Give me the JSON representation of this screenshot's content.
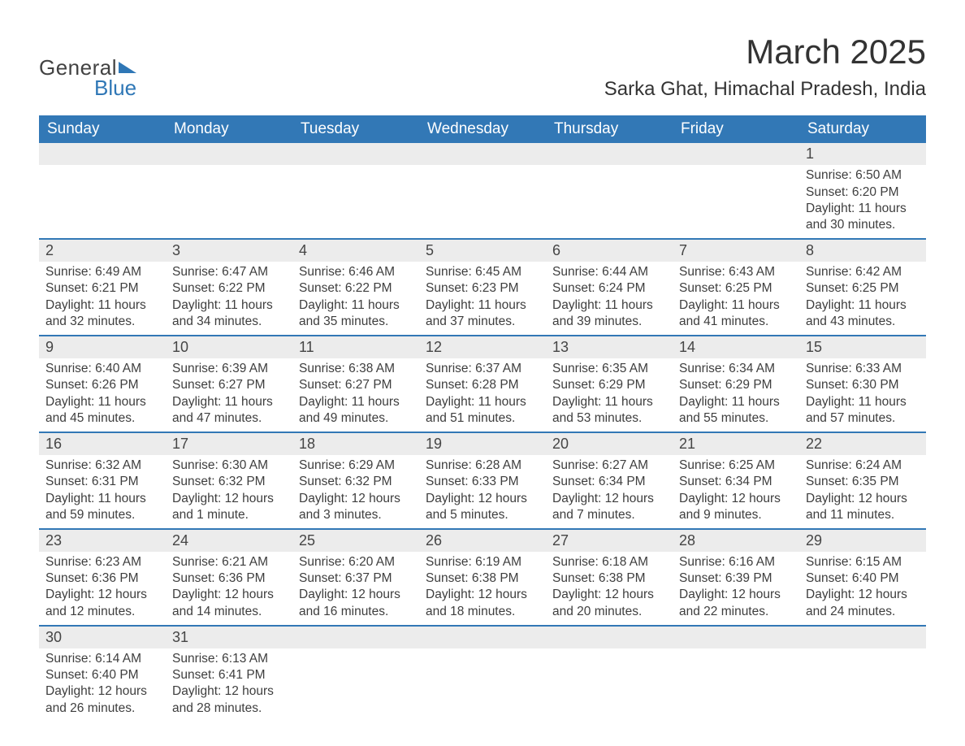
{
  "brand": {
    "part1": "General",
    "part2": "Blue"
  },
  "title": {
    "month_year": "March 2025",
    "location": "Sarka Ghat, Himachal Pradesh, India"
  },
  "colors": {
    "header_bg": "#3278b6",
    "header_text": "#ffffff",
    "daynum_bg": "#ececec",
    "body_bg": "#ffffff",
    "text": "#3a3a3a",
    "row_border": "#3278b6"
  },
  "typography": {
    "month_year_fontsize": 42,
    "location_fontsize": 24,
    "header_fontsize": 19,
    "daynum_fontsize": 18,
    "body_fontsize": 15.5
  },
  "day_headers": [
    "Sunday",
    "Monday",
    "Tuesday",
    "Wednesday",
    "Thursday",
    "Friday",
    "Saturday"
  ],
  "weeks": [
    [
      null,
      null,
      null,
      null,
      null,
      null,
      {
        "n": "1",
        "sunrise": "Sunrise: 6:50 AM",
        "sunset": "Sunset: 6:20 PM",
        "daylight1": "Daylight: 11 hours",
        "daylight2": "and 30 minutes."
      }
    ],
    [
      {
        "n": "2",
        "sunrise": "Sunrise: 6:49 AM",
        "sunset": "Sunset: 6:21 PM",
        "daylight1": "Daylight: 11 hours",
        "daylight2": "and 32 minutes."
      },
      {
        "n": "3",
        "sunrise": "Sunrise: 6:47 AM",
        "sunset": "Sunset: 6:22 PM",
        "daylight1": "Daylight: 11 hours",
        "daylight2": "and 34 minutes."
      },
      {
        "n": "4",
        "sunrise": "Sunrise: 6:46 AM",
        "sunset": "Sunset: 6:22 PM",
        "daylight1": "Daylight: 11 hours",
        "daylight2": "and 35 minutes."
      },
      {
        "n": "5",
        "sunrise": "Sunrise: 6:45 AM",
        "sunset": "Sunset: 6:23 PM",
        "daylight1": "Daylight: 11 hours",
        "daylight2": "and 37 minutes."
      },
      {
        "n": "6",
        "sunrise": "Sunrise: 6:44 AM",
        "sunset": "Sunset: 6:24 PM",
        "daylight1": "Daylight: 11 hours",
        "daylight2": "and 39 minutes."
      },
      {
        "n": "7",
        "sunrise": "Sunrise: 6:43 AM",
        "sunset": "Sunset: 6:25 PM",
        "daylight1": "Daylight: 11 hours",
        "daylight2": "and 41 minutes."
      },
      {
        "n": "8",
        "sunrise": "Sunrise: 6:42 AM",
        "sunset": "Sunset: 6:25 PM",
        "daylight1": "Daylight: 11 hours",
        "daylight2": "and 43 minutes."
      }
    ],
    [
      {
        "n": "9",
        "sunrise": "Sunrise: 6:40 AM",
        "sunset": "Sunset: 6:26 PM",
        "daylight1": "Daylight: 11 hours",
        "daylight2": "and 45 minutes."
      },
      {
        "n": "10",
        "sunrise": "Sunrise: 6:39 AM",
        "sunset": "Sunset: 6:27 PM",
        "daylight1": "Daylight: 11 hours",
        "daylight2": "and 47 minutes."
      },
      {
        "n": "11",
        "sunrise": "Sunrise: 6:38 AM",
        "sunset": "Sunset: 6:27 PM",
        "daylight1": "Daylight: 11 hours",
        "daylight2": "and 49 minutes."
      },
      {
        "n": "12",
        "sunrise": "Sunrise: 6:37 AM",
        "sunset": "Sunset: 6:28 PM",
        "daylight1": "Daylight: 11 hours",
        "daylight2": "and 51 minutes."
      },
      {
        "n": "13",
        "sunrise": "Sunrise: 6:35 AM",
        "sunset": "Sunset: 6:29 PM",
        "daylight1": "Daylight: 11 hours",
        "daylight2": "and 53 minutes."
      },
      {
        "n": "14",
        "sunrise": "Sunrise: 6:34 AM",
        "sunset": "Sunset: 6:29 PM",
        "daylight1": "Daylight: 11 hours",
        "daylight2": "and 55 minutes."
      },
      {
        "n": "15",
        "sunrise": "Sunrise: 6:33 AM",
        "sunset": "Sunset: 6:30 PM",
        "daylight1": "Daylight: 11 hours",
        "daylight2": "and 57 minutes."
      }
    ],
    [
      {
        "n": "16",
        "sunrise": "Sunrise: 6:32 AM",
        "sunset": "Sunset: 6:31 PM",
        "daylight1": "Daylight: 11 hours",
        "daylight2": "and 59 minutes."
      },
      {
        "n": "17",
        "sunrise": "Sunrise: 6:30 AM",
        "sunset": "Sunset: 6:32 PM",
        "daylight1": "Daylight: 12 hours",
        "daylight2": "and 1 minute."
      },
      {
        "n": "18",
        "sunrise": "Sunrise: 6:29 AM",
        "sunset": "Sunset: 6:32 PM",
        "daylight1": "Daylight: 12 hours",
        "daylight2": "and 3 minutes."
      },
      {
        "n": "19",
        "sunrise": "Sunrise: 6:28 AM",
        "sunset": "Sunset: 6:33 PM",
        "daylight1": "Daylight: 12 hours",
        "daylight2": "and 5 minutes."
      },
      {
        "n": "20",
        "sunrise": "Sunrise: 6:27 AM",
        "sunset": "Sunset: 6:34 PM",
        "daylight1": "Daylight: 12 hours",
        "daylight2": "and 7 minutes."
      },
      {
        "n": "21",
        "sunrise": "Sunrise: 6:25 AM",
        "sunset": "Sunset: 6:34 PM",
        "daylight1": "Daylight: 12 hours",
        "daylight2": "and 9 minutes."
      },
      {
        "n": "22",
        "sunrise": "Sunrise: 6:24 AM",
        "sunset": "Sunset: 6:35 PM",
        "daylight1": "Daylight: 12 hours",
        "daylight2": "and 11 minutes."
      }
    ],
    [
      {
        "n": "23",
        "sunrise": "Sunrise: 6:23 AM",
        "sunset": "Sunset: 6:36 PM",
        "daylight1": "Daylight: 12 hours",
        "daylight2": "and 12 minutes."
      },
      {
        "n": "24",
        "sunrise": "Sunrise: 6:21 AM",
        "sunset": "Sunset: 6:36 PM",
        "daylight1": "Daylight: 12 hours",
        "daylight2": "and 14 minutes."
      },
      {
        "n": "25",
        "sunrise": "Sunrise: 6:20 AM",
        "sunset": "Sunset: 6:37 PM",
        "daylight1": "Daylight: 12 hours",
        "daylight2": "and 16 minutes."
      },
      {
        "n": "26",
        "sunrise": "Sunrise: 6:19 AM",
        "sunset": "Sunset: 6:38 PM",
        "daylight1": "Daylight: 12 hours",
        "daylight2": "and 18 minutes."
      },
      {
        "n": "27",
        "sunrise": "Sunrise: 6:18 AM",
        "sunset": "Sunset: 6:38 PM",
        "daylight1": "Daylight: 12 hours",
        "daylight2": "and 20 minutes."
      },
      {
        "n": "28",
        "sunrise": "Sunrise: 6:16 AM",
        "sunset": "Sunset: 6:39 PM",
        "daylight1": "Daylight: 12 hours",
        "daylight2": "and 22 minutes."
      },
      {
        "n": "29",
        "sunrise": "Sunrise: 6:15 AM",
        "sunset": "Sunset: 6:40 PM",
        "daylight1": "Daylight: 12 hours",
        "daylight2": "and 24 minutes."
      }
    ],
    [
      {
        "n": "30",
        "sunrise": "Sunrise: 6:14 AM",
        "sunset": "Sunset: 6:40 PM",
        "daylight1": "Daylight: 12 hours",
        "daylight2": "and 26 minutes."
      },
      {
        "n": "31",
        "sunrise": "Sunrise: 6:13 AM",
        "sunset": "Sunset: 6:41 PM",
        "daylight1": "Daylight: 12 hours",
        "daylight2": "and 28 minutes."
      },
      null,
      null,
      null,
      null,
      null
    ]
  ]
}
